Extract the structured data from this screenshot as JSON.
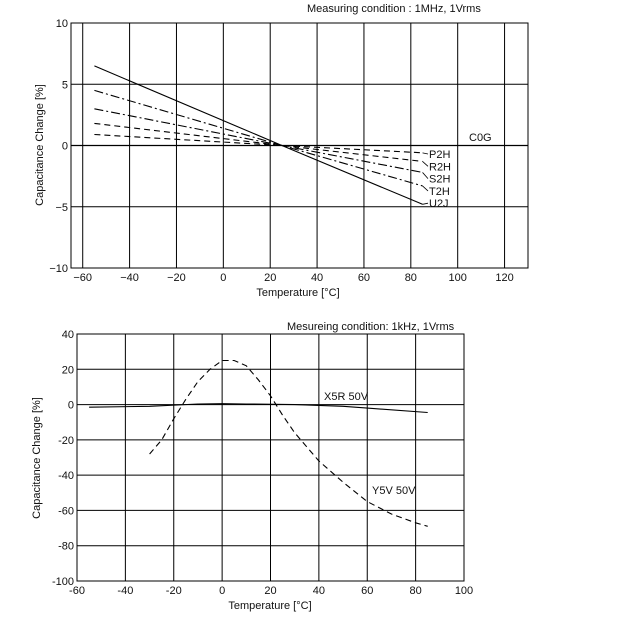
{
  "chart_data": [
    {
      "type": "line",
      "condition": "Measuring condition : 1MHz, 1Vrms",
      "xlabel": "Temperature [°C]",
      "ylabel": "Capacitance Change [%]",
      "xlim": [
        -65,
        130
      ],
      "ylim": [
        -10,
        10
      ],
      "xticks": [
        -60,
        -40,
        -20,
        0,
        20,
        40,
        60,
        80,
        100,
        120
      ],
      "yticks": [
        -10,
        -5,
        0,
        5,
        10
      ],
      "xtick_labels": [
        "−60",
        "−40",
        "−20",
        "0",
        "20",
        "40",
        "60",
        "80",
        "100",
        "120"
      ],
      "ytick_labels": [
        "−10",
        "−5",
        "0",
        "5",
        "10"
      ],
      "grid": true,
      "reference_label": "C0G",
      "reference_value": 0,
      "series": [
        {
          "name": "P2H",
          "dash": "dashed",
          "x": [
            -55,
            25,
            85
          ],
          "y": [
            0.9,
            0,
            -0.6
          ]
        },
        {
          "name": "R2H",
          "dash": "dashed",
          "x": [
            -55,
            25,
            85
          ],
          "y": [
            1.8,
            0,
            -1.3
          ]
        },
        {
          "name": "S2H",
          "dash": "dashdot",
          "x": [
            -55,
            25,
            85
          ],
          "y": [
            3.0,
            0,
            -2.2
          ]
        },
        {
          "name": "T2H",
          "dash": "dashdot",
          "x": [
            -55,
            25,
            85
          ],
          "y": [
            4.5,
            0,
            -3.3
          ]
        },
        {
          "name": "U2J",
          "dash": "solid",
          "x": [
            -55,
            25,
            85
          ],
          "y": [
            6.5,
            0,
            -4.8
          ]
        }
      ]
    },
    {
      "type": "line",
      "condition": "Mesureing condition: 1kHz, 1Vrms",
      "xlabel": "Temperature [°C]",
      "ylabel": "Capacitance Change [%]",
      "xlim": [
        -60,
        100
      ],
      "ylim": [
        -100,
        40
      ],
      "xticks": [
        -60,
        -40,
        -20,
        0,
        20,
        40,
        60,
        80,
        100
      ],
      "yticks": [
        -100,
        -80,
        -60,
        -40,
        -20,
        0,
        20,
        40
      ],
      "xtick_labels": [
        "-60",
        "-40",
        "-20",
        "0",
        "20",
        "40",
        "60",
        "80",
        "100"
      ],
      "ytick_labels": [
        "-100",
        "-80",
        "-60",
        "-40",
        "-20",
        "0",
        "20",
        "40"
      ],
      "grid": true,
      "series": [
        {
          "name": "X5R 50V",
          "dash": "solid",
          "x": [
            -55,
            -30,
            -10,
            0,
            10,
            30,
            50,
            60,
            85
          ],
          "y": [
            -1.5,
            -1,
            0.3,
            0.5,
            0.3,
            0,
            -1,
            -2,
            -4.5
          ]
        },
        {
          "name": "Y5V 50V",
          "dash": "dashed",
          "x": [
            -30,
            -25,
            -20,
            -15,
            -10,
            -5,
            0,
            5,
            10,
            15,
            20,
            25,
            30,
            40,
            50,
            60,
            70,
            80,
            85
          ],
          "y": [
            -28,
            -20,
            -8,
            3,
            13,
            20,
            25,
            25,
            22,
            14,
            5,
            -6,
            -16,
            -32,
            -44,
            -55,
            -62,
            -67,
            -69
          ]
        }
      ]
    }
  ]
}
